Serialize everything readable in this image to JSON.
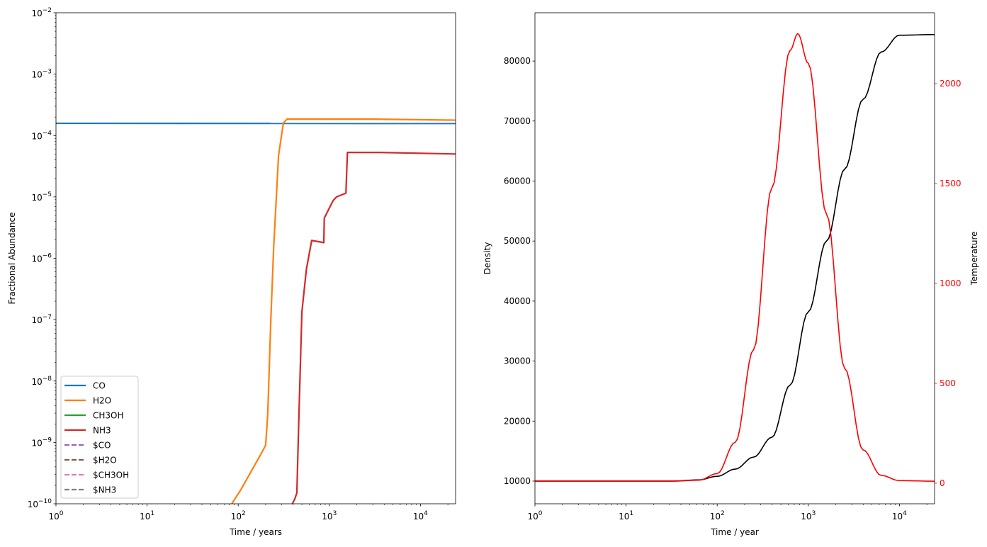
{
  "chart_data": [
    {
      "type": "line",
      "xlabel": "Time / years",
      "ylabel": "Fractional Abundance",
      "xscale": "log",
      "yscale": "log",
      "xlim": [
        1,
        24300
      ],
      "ylim": [
        1e-10,
        0.01
      ],
      "xticks": [
        1,
        10,
        100,
        1000,
        10000
      ],
      "xtick_labels": [
        [
          "10",
          "0"
        ],
        [
          "10",
          "1"
        ],
        [
          "10",
          "2"
        ],
        [
          "10",
          "3"
        ],
        [
          "10",
          "4"
        ]
      ],
      "yticks": [
        1e-10,
        1e-09,
        1e-08,
        1e-07,
        1e-06,
        1e-05,
        0.0001,
        0.001,
        0.01
      ],
      "ytick_labels": [
        [
          "10",
          "−10"
        ],
        [
          "10",
          "−9"
        ],
        [
          "10",
          "−8"
        ],
        [
          "10",
          "−7"
        ],
        [
          "10",
          "−6"
        ],
        [
          "10",
          "−5"
        ],
        [
          "10",
          "−4"
        ],
        [
          "10",
          "−3"
        ],
        [
          "10",
          "−2"
        ]
      ],
      "grid": false,
      "legend_position": "lower-left",
      "series": [
        {
          "name": "CO",
          "color": "#1f77b4",
          "dash": "solid",
          "x": [
            1,
            24300
          ],
          "y": [
            0.000158,
            0.000157
          ]
        },
        {
          "name": "H2O",
          "color": "#ff7f0e",
          "dash": "solid",
          "x": [
            85,
            107,
            183,
            200,
            211,
            228,
            245,
            277,
            313,
            343,
            3000,
            24300
          ],
          "y": [
            1e-10,
            1.7e-10,
            7e-10,
            9e-10,
            2.9e-09,
            1e-07,
            1.5e-06,
            4.7e-05,
            0.00016,
            0.000185,
            0.000185,
            0.000178
          ]
        },
        {
          "name": "CH3OH",
          "color": "#2ca02c",
          "dash": "solid",
          "x": [],
          "y": []
        },
        {
          "name": "NH3",
          "color": "#d62728",
          "dash": "solid",
          "x": [
            393,
            418,
            440,
            465,
            500,
            560,
            640,
            870,
            880,
            1100,
            1200,
            1520,
            1580,
            3500,
            24300
          ],
          "y": [
            1e-10,
            1.2e-10,
            1.5e-10,
            3.2e-09,
            1.35e-07,
            6.6e-07,
            1.95e-06,
            1.8e-06,
            4.5e-06,
            8.7e-06,
            1e-05,
            1.15e-05,
            5.3e-05,
            5.3e-05,
            5e-05
          ]
        },
        {
          "name": "$CO",
          "color": "#9467bd",
          "dash": "dashed",
          "x": [],
          "y": []
        },
        {
          "name": "$H2O",
          "color": "#8c564b",
          "dash": "dashed",
          "x": [],
          "y": []
        },
        {
          "name": "$CH3OH",
          "color": "#e377c2",
          "dash": "dashed",
          "x": [],
          "y": []
        },
        {
          "name": "$NH3",
          "color": "#7f7f7f",
          "dash": "dashed",
          "x": [],
          "y": []
        }
      ]
    },
    {
      "type": "line",
      "xlabel": "Time / year",
      "ylabel": "Density",
      "ylabel_right": "Temperature",
      "xscale": "log",
      "xlim": [
        1,
        24300
      ],
      "ylim": [
        6220,
        88040
      ],
      "ylim_right": [
        -103,
        2355
      ],
      "xticks": [
        1,
        10,
        100,
        1000,
        10000
      ],
      "xtick_labels": [
        [
          "10",
          "0"
        ],
        [
          "10",
          "1"
        ],
        [
          "10",
          "2"
        ],
        [
          "10",
          "3"
        ],
        [
          "10",
          "4"
        ]
      ],
      "yticks": [
        10000,
        20000,
        30000,
        40000,
        50000,
        60000,
        70000,
        80000
      ],
      "ytick_labels": [
        "10000",
        "20000",
        "30000",
        "40000",
        "50000",
        "60000",
        "70000",
        "80000"
      ],
      "yticks_right": [
        0,
        500,
        1000,
        1500,
        2000
      ],
      "ytick_labels_right": [
        "0",
        "500",
        "1000",
        "1500",
        "2000"
      ],
      "right_axis_color": "#ff0000",
      "grid": false,
      "series": [
        {
          "axis": "left",
          "color": "#000000",
          "x": [
            1,
            31.6,
            63.1,
            100,
            158,
            251,
            398,
            631,
            1000,
            1585,
            2512,
            3981,
            6310,
            10000,
            24300
          ],
          "y": [
            10000,
            10010,
            10200,
            10800,
            12000,
            14000,
            17300,
            26000,
            38200,
            50000,
            62000,
            73600,
            81500,
            84300,
            84400
          ]
        },
        {
          "axis": "right",
          "color": "#ff0000",
          "x": [
            1,
            31.6,
            63.1,
            100,
            158,
            251,
            398,
            631,
            767,
            1000,
            1585,
            2512,
            3981,
            6310,
            10000,
            24300
          ],
          "y": [
            10,
            10,
            15,
            48,
            205,
            669,
            1478,
            2167,
            2250,
            2102,
            1347,
            574,
            167,
            39,
            13,
            10
          ]
        }
      ]
    }
  ]
}
